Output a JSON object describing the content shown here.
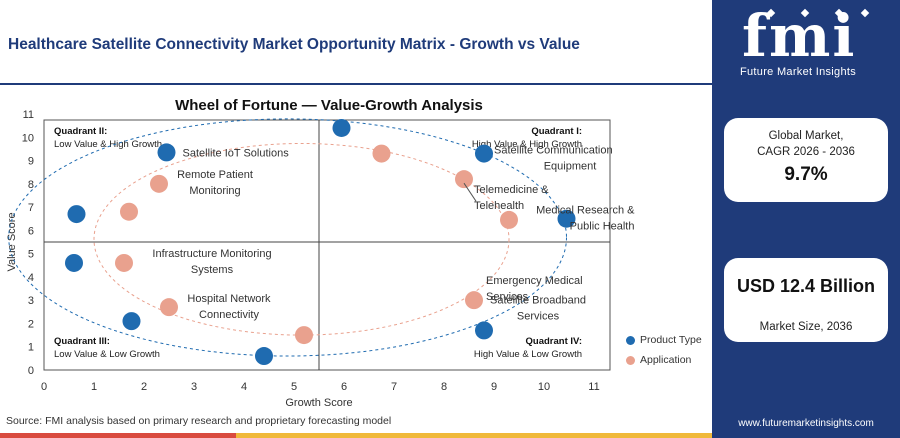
{
  "page": {
    "title": "Healthcare Satellite Connectivity Market Opportunity Matrix - Growth vs Value",
    "source": "Source: FMI analysis based on primary research and proprietary forecasting model"
  },
  "brand": {
    "logo_text": "fmi",
    "logo_subtitle": "Future Market Insights",
    "url": "www.futuremarketinsights.com",
    "colors": {
      "navy": "#1f3b7a",
      "blue_marker": "#1f6bb0",
      "salmon_marker": "#e9a18e",
      "footer_red": "#d94b3f",
      "footer_orange": "#f0b93a"
    }
  },
  "kpi": {
    "cagr_label_1": "Global Market,",
    "cagr_label_2": "CAGR 2026 - 2036",
    "cagr_value": "9.7%",
    "size_value": "USD 12.4 Billion",
    "size_label": "Market Size, 2036"
  },
  "chart_data": {
    "type": "scatter",
    "title": "Wheel of Fortune — Value-Growth Analysis",
    "xlabel": "Growth Score",
    "ylabel": "Value Score",
    "xlim": [
      0,
      11
    ],
    "ylim": [
      0,
      11
    ],
    "xticks": [
      0,
      1,
      2,
      3,
      4,
      5,
      6,
      7,
      8,
      9,
      10,
      11
    ],
    "yticks": [
      0,
      1,
      2,
      3,
      4,
      5,
      6,
      7,
      8,
      9,
      10,
      11
    ],
    "divider": {
      "x": 5.5,
      "y": 5.5
    },
    "quadrants": [
      {
        "name": "Quadrant I:",
        "desc": "High Value & High Growth",
        "pos": "top-right"
      },
      {
        "name": "Quadrant II:",
        "desc": "Low Value & High Growth",
        "pos": "top-left"
      },
      {
        "name": "Quadrant III:",
        "desc": "Low Value & Low Growth",
        "pos": "bottom-left"
      },
      {
        "name": "Quadrant IV:",
        "desc": "High Value & Low Growth",
        "pos": "bottom-right"
      }
    ],
    "legend": [
      {
        "name": "Product Type",
        "color": "#1f6bb0"
      },
      {
        "name": "Application",
        "color": "#e9a18e"
      }
    ],
    "legend_position": "right",
    "series": [
      {
        "name": "Product Type",
        "color": "#1f6bb0",
        "points": [
          {
            "x": 5.95,
            "y": 10.4
          },
          {
            "x": 8.8,
            "y": 9.3,
            "label": "Satellite Communication Equipment"
          },
          {
            "x": 10.45,
            "y": 6.5,
            "label": "Medical Research & Public Health"
          },
          {
            "x": 8.8,
            "y": 1.7,
            "label": "Satellite Broadband Services"
          },
          {
            "x": 4.4,
            "y": 0.6
          },
          {
            "x": 1.75,
            "y": 2.1
          },
          {
            "x": 0.6,
            "y": 4.6,
            "label": "Infrastructure Monitoring Systems"
          },
          {
            "x": 0.65,
            "y": 6.7
          },
          {
            "x": 2.45,
            "y": 9.35,
            "label": "Satellite IoT Solutions"
          }
        ]
      },
      {
        "name": "Application",
        "color": "#e9a18e",
        "points": [
          {
            "x": 6.75,
            "y": 9.3
          },
          {
            "x": 8.4,
            "y": 8.2,
            "label": "Telemedicine & Telehealth"
          },
          {
            "x": 9.3,
            "y": 6.45
          },
          {
            "x": 8.6,
            "y": 3.0,
            "label": "Emergency Medical Services"
          },
          {
            "x": 5.2,
            "y": 1.5
          },
          {
            "x": 2.5,
            "y": 2.7,
            "label": "Hospital Network Connectivity"
          },
          {
            "x": 1.6,
            "y": 4.6
          },
          {
            "x": 1.7,
            "y": 6.8
          },
          {
            "x": 2.3,
            "y": 8.0,
            "label": "Remote Patient Monitoring"
          }
        ]
      }
    ]
  }
}
